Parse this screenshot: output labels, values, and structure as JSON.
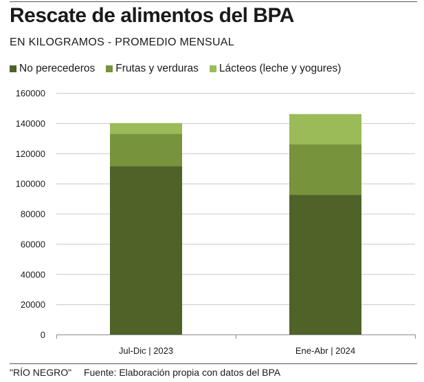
{
  "chart_data": {
    "type": "bar",
    "stacked": true,
    "title": "Rescate de alimentos del BPA",
    "subtitle": "EN KILOGRAMOS - PROMEDIO MENSUAL",
    "categories": [
      "Jul-Dic | 2023",
      "Ene-Abr | 2024"
    ],
    "series": [
      {
        "name": "No perecederos",
        "values": [
          111500,
          92500
        ],
        "color": "#4f6228"
      },
      {
        "name": "Frutas y verduras",
        "values": [
          21500,
          33500
        ],
        "color": "#77933c"
      },
      {
        "name": "Lácteos (leche y yogures)",
        "values": [
          7000,
          20000
        ],
        "color": "#9bbb59"
      }
    ],
    "ylim": [
      0,
      160000
    ],
    "yticks": [
      "0",
      "20000",
      "40000",
      "60000",
      "80000",
      "100000",
      "120000",
      "140000",
      "160000"
    ],
    "grid": true,
    "legend": "top-left"
  },
  "footer": {
    "credit": "\"RÍO NEGRO\"",
    "source": "Fuente: Elaboración propia con datos del BPA"
  }
}
